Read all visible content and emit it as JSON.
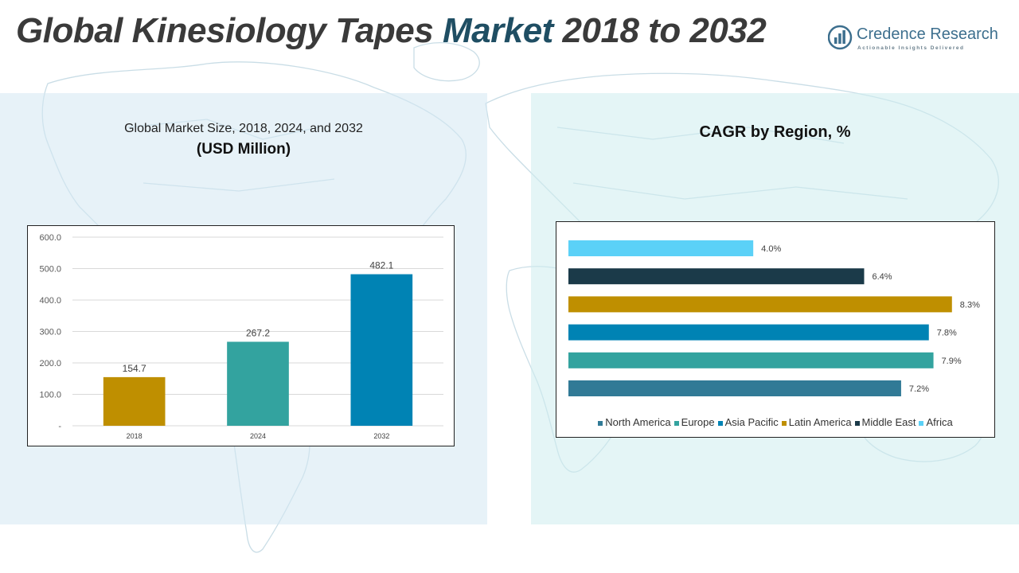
{
  "title": {
    "prefix": "Global Kinesiology Tapes ",
    "accent": "Market",
    "suffix": " 2018 to 2032"
  },
  "logo": {
    "brand": "Credence Research",
    "tagline": "Actionable Insights Delivered"
  },
  "left_panel": {
    "subtitle": "Global Market Size, 2018, 2024, and 2032",
    "unit": "(USD Million)"
  },
  "right_panel": {
    "title": "CAGR by Region, %"
  },
  "colors": {
    "title_text": "#3a3a3a",
    "title_accent": "#1f4e63",
    "brand": "#3d6f8e"
  },
  "chart_data": [
    {
      "type": "bar",
      "categories": [
        "2018",
        "2024",
        "2032"
      ],
      "values": [
        154.7,
        267.2,
        482.1
      ],
      "value_labels": [
        "154.7",
        "267.2",
        "482.1"
      ],
      "colors": [
        "#bf8f00",
        "#33a39f",
        "#0083b4"
      ],
      "ylim": [
        0,
        600
      ],
      "yticks": [
        0,
        100,
        200,
        300,
        400,
        500,
        600
      ],
      "ytick_labels": [
        "-",
        "100.0",
        "200.0",
        "300.0",
        "400.0",
        "500.0",
        "600.0"
      ],
      "grid": true
    },
    {
      "type": "bar",
      "orientation": "horizontal",
      "categories": [
        "North America",
        "Europe",
        "Asia Pacific",
        "Latin America",
        "Middle East",
        "Africa"
      ],
      "values": [
        7.2,
        7.9,
        7.8,
        8.3,
        6.4,
        4.0
      ],
      "value_labels": [
        "7.2%",
        "7.9%",
        "7.8%",
        "8.3%",
        "6.4%",
        "4.0%"
      ],
      "colors": [
        "#317a96",
        "#33a39f",
        "#0083b4",
        "#bf8f00",
        "#1b3a49",
        "#5bd1f7"
      ],
      "xlim": [
        0,
        8.7
      ],
      "legend": "bottom",
      "grid": false
    }
  ]
}
